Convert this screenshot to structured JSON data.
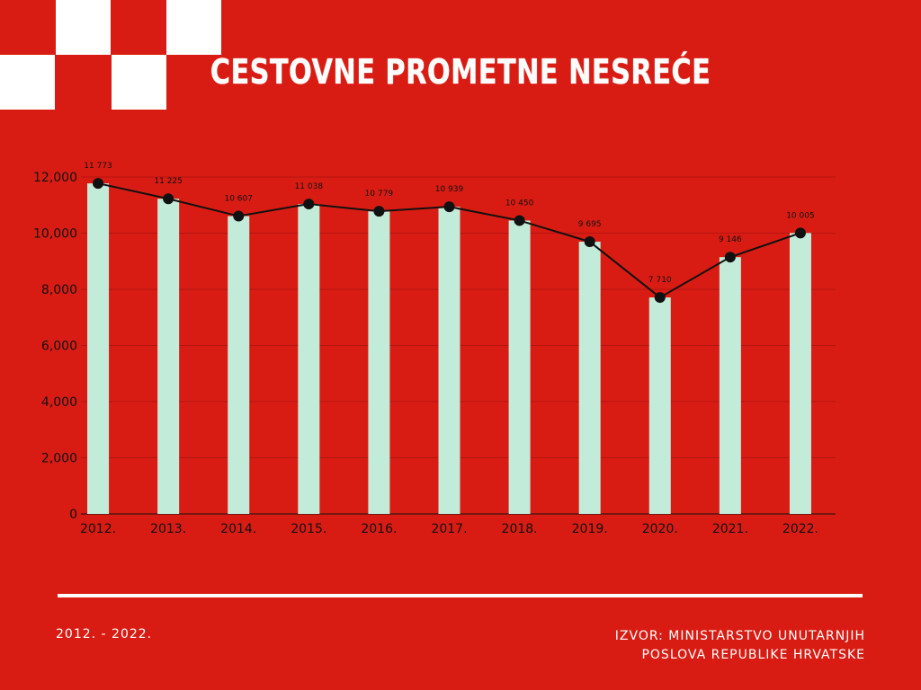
{
  "title": "CESTOVNE PROMETNE NESREĆE",
  "footer": {
    "period": "2012. - 2022.",
    "source_line1": "IZVOR: MINISTARSTVO UNUTARNJIH",
    "source_line2": "POSLOVA REPUBLIKE HRVATSKE"
  },
  "colors": {
    "background": "#d91c13",
    "bar": "#c3ebd9",
    "line": "#111111",
    "text": "#ffffff"
  },
  "chart_data": {
    "type": "bar",
    "categories": [
      "2012.",
      "2013.",
      "2014.",
      "2015.",
      "2016.",
      "2017.",
      "2018.",
      "2019.",
      "2020.",
      "2021.",
      "2022."
    ],
    "values": [
      11773,
      11225,
      10607,
      11038,
      10779,
      10939,
      10450,
      9695,
      7710,
      9146,
      10005
    ],
    "data_labels": [
      "11 773",
      "11 225",
      "10 607",
      "11 038",
      "10 779",
      "10 939",
      "10 450",
      "9 695",
      "7 710",
      "9 146",
      "10 005"
    ],
    "overlay_line": true,
    "ylim": [
      0,
      12000
    ],
    "yticks": [
      0,
      2000,
      4000,
      6000,
      8000,
      10000,
      12000
    ],
    "ytick_labels": [
      "0",
      "2,000",
      "4,000",
      "6,000",
      "8,000",
      "10,000",
      "12,000"
    ],
    "grid": true,
    "title": "",
    "xlabel": "",
    "ylabel": ""
  }
}
